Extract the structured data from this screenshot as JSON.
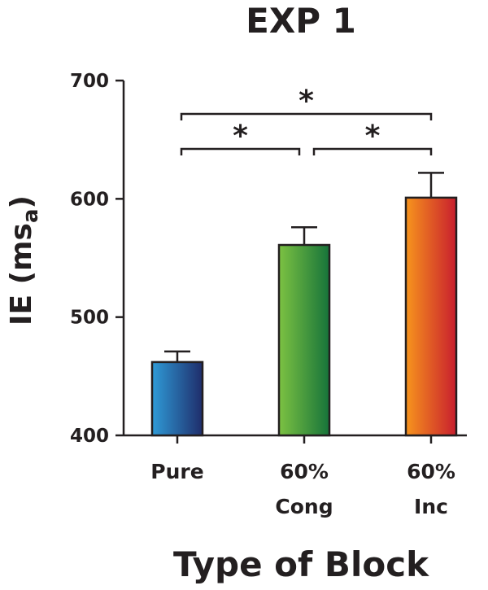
{
  "chart_data": {
    "type": "bar",
    "title": "EXP 1",
    "xlabel": "Type of Block",
    "ylabel_main": "IE (ms",
    "ylabel_sub": "a",
    "ylabel_end": ")",
    "ylim": [
      400,
      700
    ],
    "yticks": [
      400,
      500,
      600,
      700
    ],
    "grid": false,
    "categories": [
      {
        "lines": [
          "Pure"
        ],
        "value": 462,
        "error": 9,
        "colors": [
          "#2f9bd7",
          "#1f2d6b"
        ]
      },
      {
        "lines": [
          "60%",
          "Cong"
        ],
        "value": 561,
        "error": 15,
        "colors": [
          "#7cc242",
          "#16733a"
        ]
      },
      {
        "lines": [
          "60%",
          "Inc"
        ],
        "value": 601,
        "error": 21,
        "colors": [
          "#f7941d",
          "#c81e2e"
        ]
      }
    ],
    "significance": [
      {
        "from": 0,
        "to": 2,
        "label": "*"
      },
      {
        "from": 0,
        "to": 1,
        "label": "*"
      },
      {
        "from": 1,
        "to": 2,
        "label": "*"
      }
    ]
  }
}
